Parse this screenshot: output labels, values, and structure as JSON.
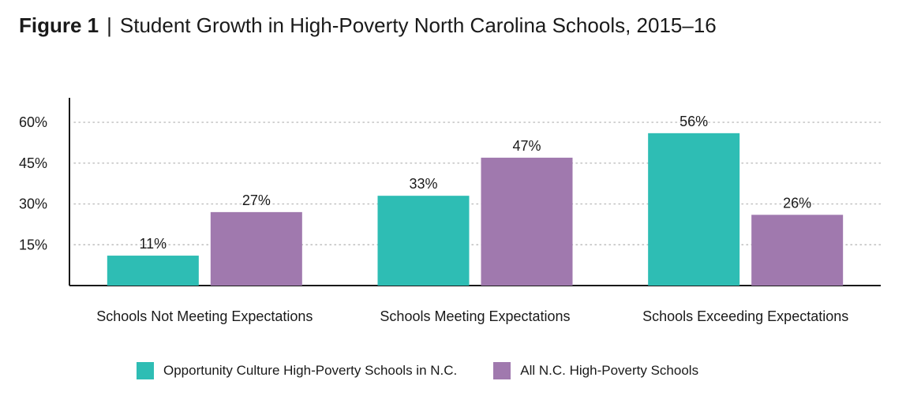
{
  "header": {
    "figure_label": "Figure 1",
    "separator": "|",
    "title": "Student Growth in High-Poverty North Carolina Schools, 2015–16"
  },
  "colors": {
    "opportunity": "#2ebdb4",
    "all": "#a079ae",
    "axis": "#1a1a1a",
    "grid": "#bdbdbd"
  },
  "chart_data": {
    "type": "bar",
    "title": "Student Growth in High-Poverty North Carolina Schools, 2015–16",
    "xlabel": "",
    "ylabel": "",
    "categories": [
      "Schools Not Meeting Expectations",
      "Schools Meeting Expectations",
      "Schools Exceeding Expectations"
    ],
    "series": [
      {
        "name": "Opportunity Culture High-Poverty Schools in N.C.",
        "values": [
          11,
          33,
          56
        ],
        "labels": [
          "11%",
          "33%",
          "56%"
        ],
        "color": "#2ebdb4"
      },
      {
        "name": "All N.C. High-Poverty Schools",
        "values": [
          27,
          47,
          26
        ],
        "labels": [
          "27%",
          "47%",
          "26%"
        ],
        "color": "#a079ae"
      }
    ],
    "yticks": [
      15,
      30,
      45,
      60
    ],
    "ytick_labels": [
      "15%",
      "30%",
      "45%",
      "60%"
    ],
    "ylim": [
      0,
      69
    ],
    "grid": true,
    "grid_style": "dotted",
    "legend_position": "bottom"
  }
}
